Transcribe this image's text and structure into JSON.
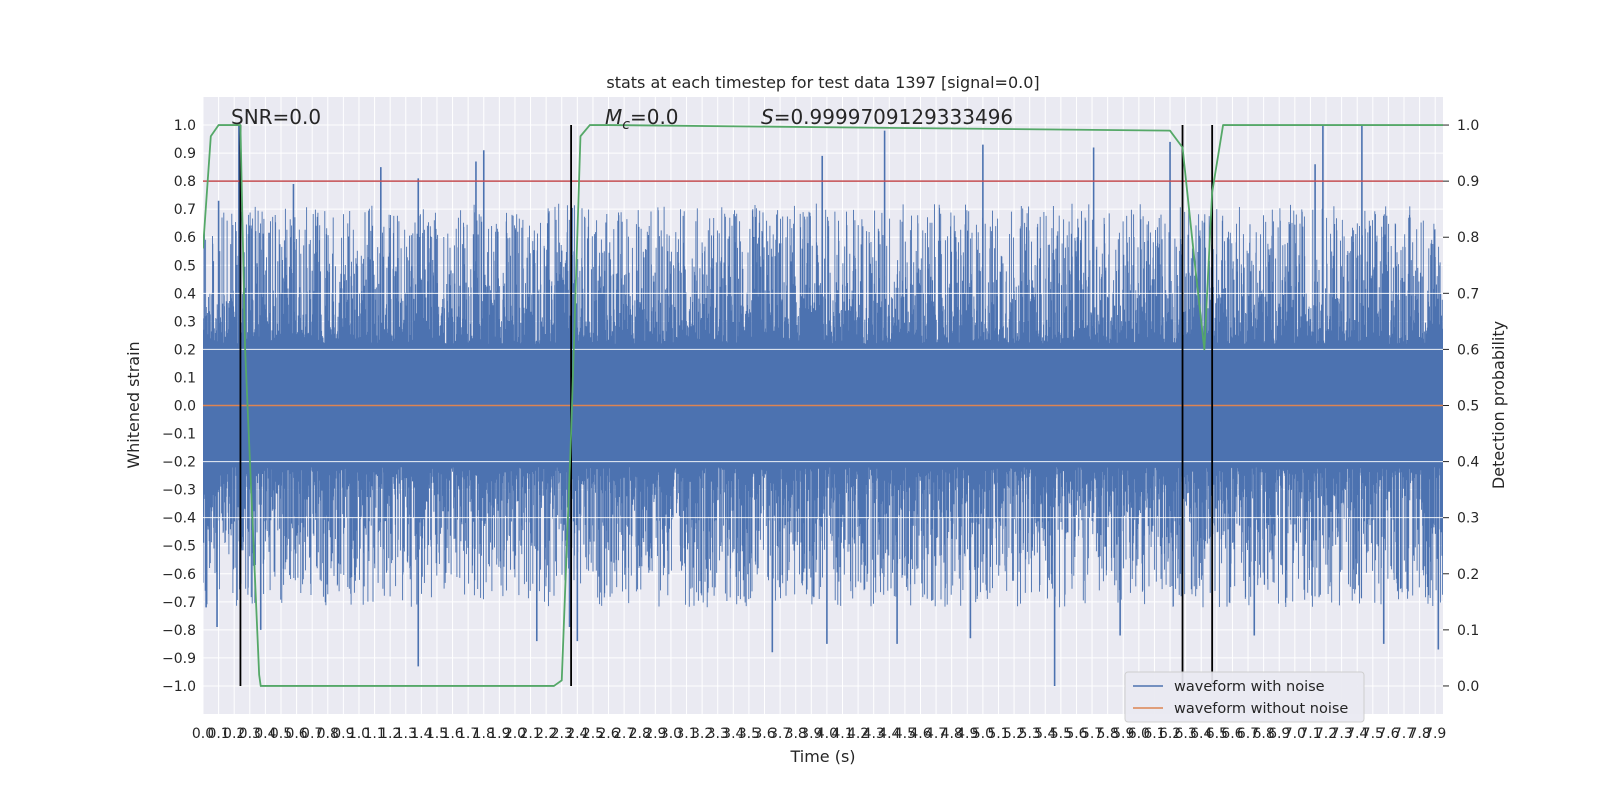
{
  "chart_data": {
    "type": "line",
    "title": "stats at each timestep for test data 1397 [signal=0.0]",
    "xlabel": "Time (s)",
    "ylabel_left": "Whitened strain",
    "ylabel_right": "Detection probability",
    "xlim": [
      0.0,
      7.95
    ],
    "ylim_left": [
      -1.1,
      1.1
    ],
    "ylim_right": [
      -0.05,
      1.05
    ],
    "x_ticks": [
      "0.0",
      "0.1",
      "0.2",
      "0.3",
      "0.4",
      "0.5",
      "0.6",
      "0.7",
      "0.8",
      "0.9",
      "1.0",
      "1.1",
      "1.2",
      "1.3",
      "1.4",
      "1.5",
      "1.6",
      "1.7",
      "1.8",
      "1.9",
      "2.0",
      "2.1",
      "2.2",
      "2.3",
      "2.4",
      "2.5",
      "2.6",
      "2.7",
      "2.8",
      "2.9",
      "3.0",
      "3.1",
      "3.2",
      "3.3",
      "3.4",
      "3.5",
      "3.6",
      "3.7",
      "3.8",
      "3.9",
      "4.0",
      "4.1",
      "4.2",
      "4.3",
      "4.4",
      "4.5",
      "4.6",
      "4.7",
      "4.8",
      "4.9",
      "5.0",
      "5.1",
      "5.2",
      "5.3",
      "5.4",
      "5.5",
      "5.6",
      "5.7",
      "5.8",
      "5.9",
      "6.0",
      "6.1",
      "6.2",
      "6.3",
      "6.4",
      "6.5",
      "6.6",
      "6.7",
      "6.8",
      "6.9",
      "7.0",
      "7.1",
      "7.2",
      "7.3",
      "7.4",
      "7.5",
      "7.6",
      "7.7",
      "7.8",
      "7.9"
    ],
    "y_ticks_left": [
      "−1.0",
      "−0.9",
      "−0.8",
      "−0.7",
      "−0.6",
      "−0.5",
      "−0.4",
      "−0.3",
      "−0.2",
      "−0.1",
      "0.0",
      "0.1",
      "0.2",
      "0.3",
      "0.4",
      "0.5",
      "0.6",
      "0.7",
      "0.8",
      "0.9",
      "1.0"
    ],
    "y_ticks_right": [
      "0.0",
      "0.1",
      "0.2",
      "0.3",
      "0.4",
      "0.5",
      "0.6",
      "0.7",
      "0.8",
      "0.9",
      "1.0"
    ],
    "annotations": {
      "snr": "SNR=0.0",
      "mc_symbol": "M",
      "mc_sub": "c",
      "mc_value": "=0.0",
      "s_symbol": "S",
      "s_value": "=0.9999709129333496"
    },
    "threshold_right_axis": 0.9,
    "vertical_lines_time": [
      0.24,
      2.36,
      6.28,
      6.47
    ],
    "legend": {
      "placement": "lower-right",
      "entries": [
        {
          "label": "waveform with noise",
          "color": "#4c72b0"
        },
        {
          "label": "waveform without noise",
          "color": "#dd8452"
        }
      ]
    },
    "colors": {
      "noise": "#4c72b0",
      "clean": "#dd8452",
      "probability": "#55a868",
      "threshold": "#c44e52",
      "background": "#eaeaf2"
    },
    "series": [
      {
        "name": "waveform with noise",
        "type": "dense-noise",
        "color": "#4c72b0",
        "peaks": [
          {
            "x": 0.02,
            "y": -0.72
          },
          {
            "x": 0.09,
            "y": -0.79
          },
          {
            "x": 0.1,
            "y": 0.73
          },
          {
            "x": 0.23,
            "y": 1.0
          },
          {
            "x": 0.37,
            "y": -0.8
          },
          {
            "x": 0.58,
            "y": 0.79
          },
          {
            "x": 1.14,
            "y": 0.85
          },
          {
            "x": 1.38,
            "y": 0.81
          },
          {
            "x": 1.38,
            "y": -0.93
          },
          {
            "x": 1.75,
            "y": 0.87
          },
          {
            "x": 1.8,
            "y": 0.91
          },
          {
            "x": 2.14,
            "y": -0.84
          },
          {
            "x": 2.35,
            "y": -0.79
          },
          {
            "x": 2.4,
            "y": -0.84
          },
          {
            "x": 3.65,
            "y": -0.88
          },
          {
            "x": 3.97,
            "y": 0.89
          },
          {
            "x": 4.0,
            "y": -0.85
          },
          {
            "x": 4.37,
            "y": 0.98
          },
          {
            "x": 4.45,
            "y": -0.85
          },
          {
            "x": 4.92,
            "y": -0.83
          },
          {
            "x": 5.0,
            "y": 0.93
          },
          {
            "x": 5.46,
            "y": -1.0
          },
          {
            "x": 5.71,
            "y": 0.92
          },
          {
            "x": 5.88,
            "y": -0.82
          },
          {
            "x": 6.2,
            "y": 0.94
          },
          {
            "x": 6.74,
            "y": -0.82
          },
          {
            "x": 7.13,
            "y": 0.86
          },
          {
            "x": 7.18,
            "y": 1.0
          },
          {
            "x": 7.43,
            "y": 1.0
          },
          {
            "x": 7.57,
            "y": -0.85
          },
          {
            "x": 7.92,
            "y": -0.87
          }
        ]
      },
      {
        "name": "waveform without noise",
        "color": "#dd8452",
        "x": [
          0.0,
          7.95
        ],
        "y": [
          0.0,
          0.0
        ]
      },
      {
        "axis": "right",
        "color": "#55a868",
        "x": [
          0.0,
          0.05,
          0.1,
          0.24,
          0.27,
          0.36,
          0.37,
          2.2,
          2.25,
          2.3,
          2.36,
          2.42,
          2.48,
          2.6,
          6.2,
          6.28,
          6.36,
          6.42,
          6.47,
          6.54,
          6.6,
          7.95
        ],
        "y": [
          0.78,
          0.98,
          1.0,
          1.0,
          0.6,
          0.02,
          0.0,
          0.0,
          0.0,
          0.01,
          0.45,
          0.98,
          1.0,
          1.0,
          0.99,
          0.96,
          0.75,
          0.6,
          0.88,
          1.0,
          1.0,
          1.0
        ]
      }
    ]
  }
}
